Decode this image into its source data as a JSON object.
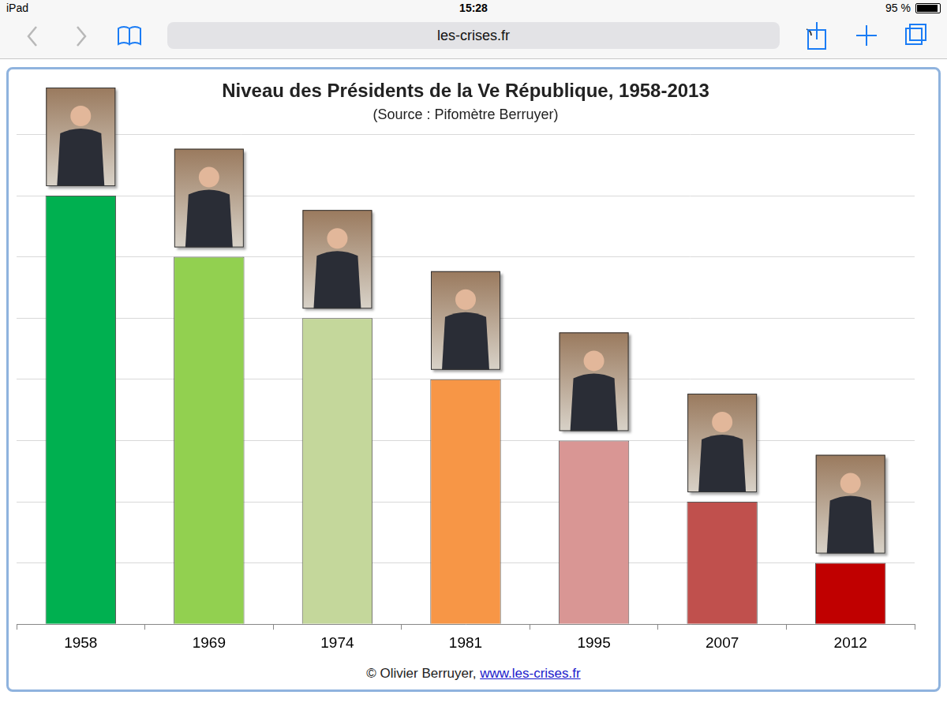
{
  "screen": {
    "device": "iPad",
    "time": "15:28",
    "battery": "95 %",
    "url": "les-crises.fr"
  },
  "chart_data": {
    "type": "bar",
    "title": "Niveau des Présidents de la Ve République, 1958-2013",
    "subtitle": "(Source : Pifomètre Berruyer)",
    "credit": "© Olivier Berruyer,",
    "credit_link": "www.les-crises.fr",
    "categories": [
      "1958",
      "1969",
      "1974",
      "1981",
      "1995",
      "2007",
      "2012"
    ],
    "values": [
      7,
      6,
      5,
      4,
      3,
      2,
      1
    ],
    "colors": [
      "#00b050",
      "#92d050",
      "#c4d79b",
      "#f79646",
      "#d99694",
      "#c0504d",
      "#c00000"
    ],
    "ylim": [
      0,
      8
    ],
    "yticks": [
      0,
      1,
      2,
      3,
      4,
      5,
      6,
      7,
      8
    ],
    "grid": true,
    "tick_labels": "x"
  }
}
